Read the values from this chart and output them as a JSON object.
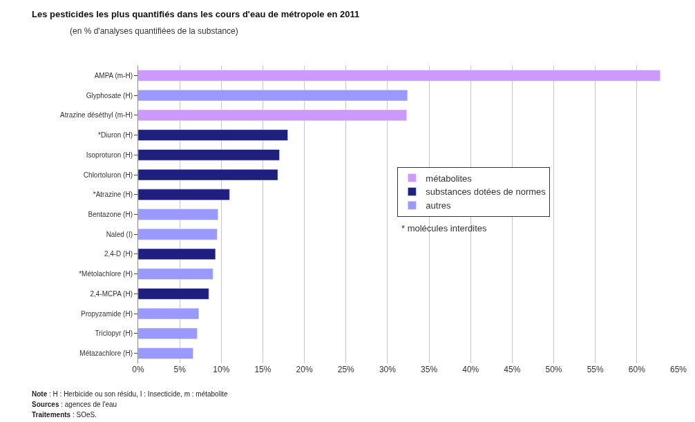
{
  "chart_data": {
    "type": "bar",
    "orientation": "horizontal",
    "title": "Les pesticides les plus quantifiés dans les cours d'eau de métropole en 2011",
    "subtitle": "(en % d'analyses quantifiées de la substance)",
    "categories": [
      "AMPA (m-H)",
      "Glyphosate (H)",
      "Atrazine déséthyl (m-H)",
      "*Diuron (H)",
      "Isoproturon (H)",
      "Chlortoluron (H)",
      "*Atrazine (H)",
      "Bentazone (H)",
      "Naled (I)",
      "2,4-D (H)",
      "*Métolachlore (H)",
      "2,4-MCPA (H)",
      "Propyzamide (H)",
      "Triclopyr (H)",
      "Métazachlore (H)"
    ],
    "series": [
      {
        "name": "métabolites",
        "color": "#cc99ff",
        "values": [
          62.8,
          null,
          32.3,
          null,
          null,
          null,
          null,
          null,
          null,
          null,
          null,
          null,
          null,
          null,
          null
        ]
      },
      {
        "name": "substances dotées de normes",
        "color": "#1f1f7f",
        "values": [
          null,
          null,
          null,
          18.0,
          17.0,
          16.8,
          11.0,
          null,
          null,
          9.3,
          null,
          8.5,
          null,
          null,
          null
        ]
      },
      {
        "name": "autres",
        "color": "#9999ff",
        "values": [
          null,
          32.4,
          null,
          null,
          null,
          null,
          null,
          9.6,
          9.5,
          null,
          9.0,
          null,
          7.3,
          7.1,
          6.6
        ]
      }
    ],
    "xlim": [
      0,
      65
    ],
    "xticks": [
      {
        "value": 0,
        "label": "0%"
      },
      {
        "value": 5,
        "label": "5%"
      },
      {
        "value": 10,
        "label": "10%"
      },
      {
        "value": 15,
        "label": "15%"
      },
      {
        "value": 20,
        "label": "20%"
      },
      {
        "value": 25,
        "label": "25%"
      },
      {
        "value": 30,
        "label": "30%"
      },
      {
        "value": 35,
        "label": "35%"
      },
      {
        "value": 40,
        "label": "40%"
      },
      {
        "value": 45,
        "label": "45%"
      },
      {
        "value": 50,
        "label": "50%"
      },
      {
        "value": 55,
        "label": "55%"
      },
      {
        "value": 60,
        "label": "60%"
      },
      {
        "value": 65,
        "label": "65%"
      }
    ],
    "grid": "x",
    "legend": "center",
    "annotations": [
      "* molécules interdites",
      "Note : H : Herbicide ou son résidu, I : Insecticide, m : métabolite",
      "Sources : agences de l'eau",
      "Traitements : SOeS."
    ]
  }
}
